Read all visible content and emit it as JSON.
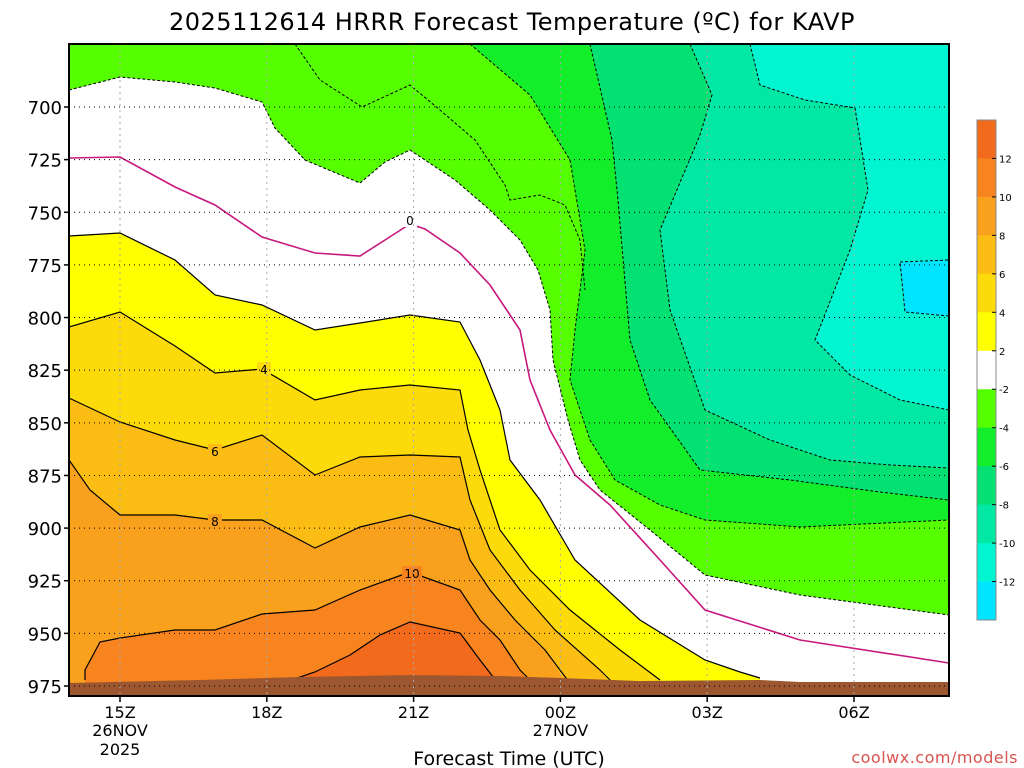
{
  "chart_data": {
    "type": "heatmap",
    "title": "2025112614 HRRR Forecast Temperature (ºC) for KAVP",
    "xlabel": "Forecast Time (UTC)",
    "ylabel": "",
    "y_scale": "pressure (inverted)",
    "y_ticks": [
      700,
      725,
      750,
      775,
      800,
      825,
      850,
      875,
      900,
      925,
      950,
      975
    ],
    "x_ticks": [
      {
        "label": "15Z",
        "date": "26NOV",
        "year": "2025"
      },
      {
        "label": "18Z",
        "date": "",
        "year": ""
      },
      {
        "label": "21Z",
        "date": "",
        "year": ""
      },
      {
        "label": "00Z",
        "date": "27NOV",
        "year": ""
      },
      {
        "label": "03Z",
        "date": "",
        "year": ""
      },
      {
        "label": "06Z",
        "date": "",
        "year": ""
      }
    ],
    "grid": true,
    "legend": "colorbar right",
    "colorbar_ticks": [
      12,
      10,
      8,
      6,
      4,
      2,
      -2,
      -4,
      -6,
      -8,
      -10,
      -12
    ],
    "contour_labels": [
      "0",
      "4",
      "6",
      "8",
      "10"
    ],
    "color_bins": [
      {
        "range": "above 12",
        "color": "#f26a1b"
      },
      {
        "range": "10 to 12",
        "color": "#f7841e"
      },
      {
        "range": "8 to 10",
        "color": "#f9a11c"
      },
      {
        "range": "6 to 8",
        "color": "#fbbd13"
      },
      {
        "range": "4 to 6",
        "color": "#fddb0a"
      },
      {
        "range": "2 to 4",
        "color": "#ffff00"
      },
      {
        "range": "-2 to 2",
        "color": "#ffffff"
      },
      {
        "range": "-4 to -2",
        "color": "#55ff00"
      },
      {
        "range": "-6 to -4",
        "color": "#12ee2a"
      },
      {
        "range": "-8 to -6",
        "color": "#02e172"
      },
      {
        "range": "-10 to -8",
        "color": "#00e8a3"
      },
      {
        "range": "-12 to -10",
        "color": "#00f5d0"
      },
      {
        "range": "below -12",
        "color": "#00e5ff"
      }
    ],
    "ground_color": "#9c5730"
  },
  "credit": "coolwx.com/models"
}
